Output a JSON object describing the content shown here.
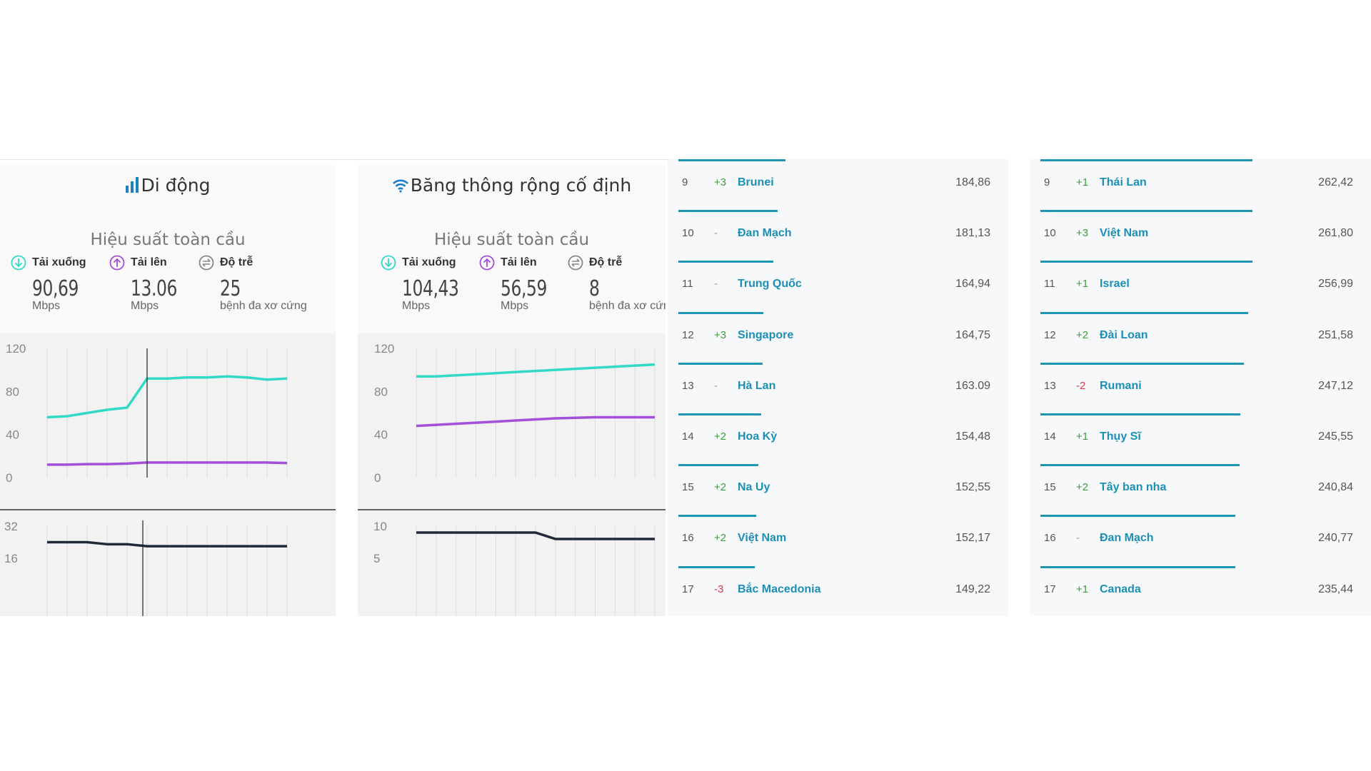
{
  "colors": {
    "download": "#33d9c7",
    "upload": "#a24fd9",
    "latency": "#1f2937",
    "accent": "#1d95b3"
  },
  "cards": [
    {
      "id": "mobile",
      "title": "Di động",
      "icon": "signal-bars-icon",
      "performance_title": "Hiệu suất toàn cầu",
      "metrics": [
        {
          "label": "Tải xuống",
          "value": "90,69",
          "unit": "Mbps",
          "icon": "download-icon"
        },
        {
          "label": "Tải lên",
          "value": "13.06",
          "unit": "Mbps",
          "icon": "upload-icon"
        },
        {
          "label": "Độ trễ",
          "value": "25",
          "unit": "bệnh đa xơ cứng",
          "icon": "latency-icon"
        }
      ]
    },
    {
      "id": "fixed",
      "title": "Băng thông rộng cố định",
      "icon": "wifi-icon",
      "performance_title": "Hiệu suất toàn cầu",
      "metrics": [
        {
          "label": "Tải xuống",
          "value": "104,43",
          "unit": "Mbps",
          "icon": "download-icon"
        },
        {
          "label": "Tải lên",
          "value": "56,59",
          "unit": "Mbps",
          "icon": "upload-icon"
        },
        {
          "label": "Độ trễ",
          "value": "8",
          "unit": "bệnh đa xơ cứng",
          "icon": "latency-icon"
        }
      ]
    }
  ],
  "chart_data": [
    {
      "type": "line",
      "title": "",
      "y_ticks": [
        "120",
        "80",
        "40",
        "0"
      ],
      "ylim": [
        0,
        120
      ],
      "x": [
        1,
        2,
        3,
        4,
        5,
        6,
        7,
        8,
        9,
        10,
        11,
        12,
        13
      ],
      "series": [
        {
          "values": [
            56,
            57,
            60,
            63,
            65,
            92,
            92,
            93,
            93,
            94,
            93,
            91,
            92
          ]
        },
        {
          "values": [
            12,
            12,
            12.5,
            12.5,
            13,
            14,
            14,
            14,
            14,
            14,
            14,
            14,
            13.5
          ]
        }
      ],
      "latency": {
        "y_ticks": [
          "32",
          "16"
        ],
        "values": [
          24,
          24,
          24,
          23,
          23,
          22,
          22,
          22,
          22,
          22,
          22,
          22,
          22
        ]
      }
    },
    {
      "type": "line",
      "title": "",
      "y_ticks": [
        "120",
        "80",
        "40",
        "0"
      ],
      "ylim": [
        0,
        120
      ],
      "x": [
        1,
        2,
        3,
        4,
        5,
        6,
        7,
        8,
        9,
        10,
        11,
        12,
        13
      ],
      "series": [
        {
          "values": [
            94,
            94,
            95,
            96,
            97,
            98,
            99,
            100,
            101,
            102,
            103,
            104,
            105
          ]
        },
        {
          "values": [
            48,
            49,
            50,
            51,
            52,
            53,
            54,
            55,
            55.5,
            56,
            56,
            56,
            56
          ]
        }
      ],
      "latency": {
        "y_ticks": [
          "10",
          "5"
        ],
        "values": [
          9,
          9,
          9,
          9,
          9,
          9,
          9,
          8,
          8,
          8,
          8,
          8,
          8
        ]
      }
    }
  ],
  "rankings_left": [
    {
      "rank": "9",
      "change": "+3",
      "country": "Brunei",
      "value": "184,86"
    },
    {
      "rank": "10",
      "change": "-",
      "country": "Đan Mạch",
      "value": "181,13"
    },
    {
      "rank": "11",
      "change": "-",
      "country": "Trung Quốc",
      "value": "164,94"
    },
    {
      "rank": "12",
      "change": "+3",
      "country": "Singapore",
      "value": "164,75"
    },
    {
      "rank": "13",
      "change": "-",
      "country": "Hà Lan",
      "value": "163.09"
    },
    {
      "rank": "14",
      "change": "+2",
      "country": "Hoa Kỳ",
      "value": "154,48"
    },
    {
      "rank": "15",
      "change": "+2",
      "country": "Na Uy",
      "value": "152,55"
    },
    {
      "rank": "16",
      "change": "+2",
      "country": "Việt Nam",
      "value": "152,17"
    },
    {
      "rank": "17",
      "change": "-3",
      "country": "Bắc Macedonia",
      "value": "149,22"
    }
  ],
  "rankings_right": [
    {
      "rank": "9",
      "change": "+1",
      "country": "Thái Lan",
      "value": "262,42"
    },
    {
      "rank": "10",
      "change": "+3",
      "country": "Việt Nam",
      "value": "261,80"
    },
    {
      "rank": "11",
      "change": "+1",
      "country": "Israel",
      "value": "256,99"
    },
    {
      "rank": "12",
      "change": "+2",
      "country": "Đài Loan",
      "value": "251,58"
    },
    {
      "rank": "13",
      "change": "-2",
      "country": "Rumani",
      "value": "247,12"
    },
    {
      "rank": "14",
      "change": "+1",
      "country": "Thụy Sĩ",
      "value": "245,55"
    },
    {
      "rank": "15",
      "change": "+2",
      "country": "Tây ban nha",
      "value": "240,84"
    },
    {
      "rank": "16",
      "change": "-",
      "country": "Đan Mạch",
      "value": "240,77"
    },
    {
      "rank": "17",
      "change": "+1",
      "country": "Canada",
      "value": "235,44"
    }
  ]
}
